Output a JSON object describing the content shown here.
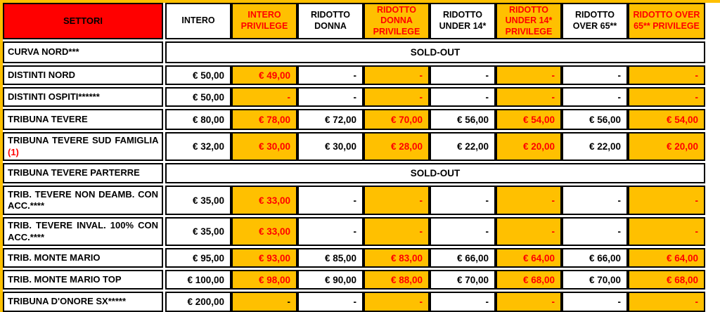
{
  "colors": {
    "table_background": "#FFC000",
    "settori_header_background": "#FF0000",
    "privilege_background": "#FFC000",
    "privilege_text": "#FF0000",
    "plain_background": "#FFFFFF",
    "plain_text": "#000000"
  },
  "sold_out_label": "SOLD-OUT",
  "columns": [
    {
      "id": "settori",
      "label": "SETTORI",
      "privilege": false
    },
    {
      "id": "intero",
      "label": "INTERO",
      "privilege": false
    },
    {
      "id": "intero-privilege",
      "label": "INTERO PRIVILEGE",
      "privilege": true
    },
    {
      "id": "ridotto-donna",
      "label": "RIDOTTO DONNA",
      "privilege": false
    },
    {
      "id": "ridotto-donna-privilege",
      "label": "RIDOTTO DONNA PRIVILEGE",
      "privilege": true
    },
    {
      "id": "ridotto-under14",
      "label": "RIDOTTO UNDER 14*",
      "privilege": false
    },
    {
      "id": "ridotto-under14-privilege",
      "label": "RIDOTTO UNDER 14* PRIVILEGE",
      "privilege": true
    },
    {
      "id": "ridotto-over65",
      "label": "RIDOTTO OVER 65**",
      "privilege": false
    },
    {
      "id": "ridotto-over65-privilege",
      "label": "RIDOTTO OVER 65** PRIVILEGE",
      "privilege": true
    }
  ],
  "rows": [
    {
      "sector": "CURVA NORD***",
      "merged": "SOLD-OUT"
    },
    {
      "sector": "DISTINTI NORD",
      "values": [
        "€ 50,00",
        "€ 49,00",
        "-",
        "-",
        "-",
        "-",
        "-",
        "-"
      ]
    },
    {
      "sector": "DISTINTI OSPITI******",
      "values": [
        "€ 50,00",
        "-",
        "-",
        "-",
        "-",
        "-",
        "-",
        "-"
      ]
    },
    {
      "sector": "TRIBUNA TEVERE",
      "values": [
        "€ 80,00",
        "€ 78,00",
        "€ 72,00",
        "€ 70,00",
        "€ 56,00",
        "€ 54,00",
        "€ 56,00",
        "€ 54,00"
      ]
    },
    {
      "sector": "TRIBUNA TEVERE SUD FAMIGLIA",
      "sector_suffix": "(1)",
      "values": [
        "€ 32,00",
        "€ 30,00",
        "€ 30,00",
        "€ 28,00",
        "€ 22,00",
        "€ 20,00",
        "€ 22,00",
        "€ 20,00"
      ]
    },
    {
      "sector": "TRIBUNA TEVERE PARTERRE",
      "merged": "SOLD-OUT"
    },
    {
      "sector": "TRIB. TEVERE NON DEAMB. CON ACC.****",
      "values": [
        "€ 35,00",
        "€ 33,00",
        "-",
        "-",
        "-",
        "-",
        "-",
        "-"
      ]
    },
    {
      "sector": "TRIB. TEVERE INVAL. 100% CON ACC.****",
      "values": [
        "€ 35,00",
        "€ 33,00",
        "-",
        "-",
        "-",
        "-",
        "-",
        "-"
      ]
    },
    {
      "sector": "TRIB. MONTE MARIO",
      "values": [
        "€ 95,00",
        "€ 93,00",
        "€ 85,00",
        "€ 83,00",
        "€ 66,00",
        "€ 64,00",
        "€ 66,00",
        "€ 64,00"
      ]
    },
    {
      "sector": "TRIB. MONTE MARIO TOP",
      "values": [
        "€ 100,00",
        "€ 98,00",
        "€ 90,00",
        "€ 88,00",
        "€ 70,00",
        "€ 68,00",
        "€ 70,00",
        "€ 68,00"
      ]
    },
    {
      "sector": "TRIBUNA D'ONORE SX*****",
      "values": [
        "€ 200,00",
        "-",
        "-",
        "-",
        "-",
        "-",
        "-",
        "-"
      ],
      "overrides": {
        "1": "#000000"
      }
    }
  ]
}
